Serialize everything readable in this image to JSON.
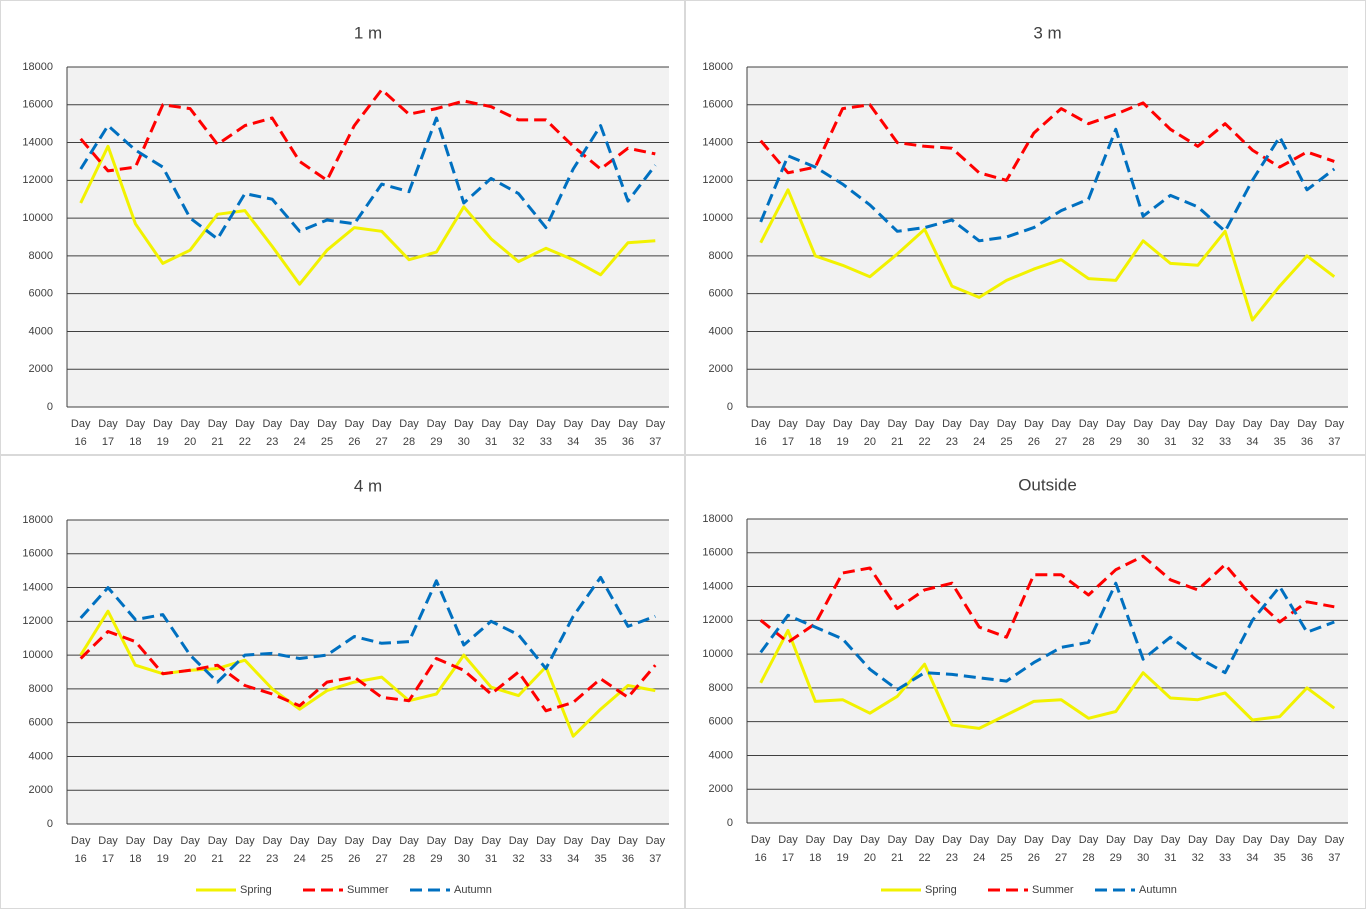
{
  "chart_data": [
    {
      "type": "line",
      "title": "1 m",
      "categories": [
        "Day 16",
        "Day 17",
        "Day 18",
        "Day 19",
        "Day 20",
        "Day 21",
        "Day 22",
        "Day 23",
        "Day 24",
        "Day 25",
        "Day 26",
        "Day 27",
        "Day 28",
        "Day 29",
        "Day 30",
        "Day 31",
        "Day 32",
        "Day 33",
        "Day 34",
        "Day 35",
        "Day 36",
        "Day 37"
      ],
      "series": [
        {
          "color": "#f2f200",
          "style": "solid",
          "values": [
            10800,
            13800,
            9700,
            7600,
            8300,
            10200,
            10400,
            8500,
            6500,
            8300,
            9500,
            9300,
            7800,
            8200,
            10600,
            8900,
            7700,
            8400,
            7800,
            7000,
            8700,
            8800
          ]
        },
        {
          "color": "#ff0000",
          "style": "dashed",
          "values": [
            14200,
            12500,
            12700,
            16000,
            15800,
            13900,
            14900,
            15300,
            13000,
            12000,
            14900,
            16800,
            15500,
            15800,
            16200,
            15900,
            15200,
            15200,
            13800,
            12600,
            13700,
            13400
          ]
        },
        {
          "color": "#0070c0",
          "style": "dashed",
          "values": [
            12600,
            14900,
            13600,
            12700,
            10000,
            8900,
            11300,
            11000,
            9300,
            9900,
            9700,
            11800,
            11400,
            15300,
            10800,
            12100,
            11300,
            9500,
            12600,
            14900,
            10900,
            12800
          ]
        }
      ],
      "ylim": [
        0,
        18000
      ],
      "yticks": [
        0,
        2000,
        4000,
        6000,
        8000,
        10000,
        12000,
        14000,
        16000,
        18000
      ],
      "grid": true
    },
    {
      "type": "line",
      "title": "3 m",
      "categories": [
        "Day 16",
        "Day 17",
        "Day 18",
        "Day 19",
        "Day 20",
        "Day 21",
        "Day 22",
        "Day 23",
        "Day 24",
        "Day 25",
        "Day 26",
        "Day 27",
        "Day 28",
        "Day 29",
        "Day 30",
        "Day 31",
        "Day 32",
        "Day 33",
        "Day 34",
        "Day 35",
        "Day 36",
        "Day 37"
      ],
      "series": [
        {
          "color": "#f2f200",
          "style": "solid",
          "values": [
            8700,
            11500,
            8000,
            7500,
            6900,
            8100,
            9400,
            6400,
            5800,
            6700,
            7300,
            7800,
            6800,
            6700,
            8800,
            7600,
            7500,
            9300,
            4600,
            6400,
            8000,
            6900
          ]
        },
        {
          "color": "#ff0000",
          "style": "dashed",
          "values": [
            14100,
            12400,
            12700,
            15800,
            16000,
            14000,
            13800,
            13700,
            12400,
            12000,
            14500,
            15800,
            15000,
            15500,
            16100,
            14700,
            13800,
            15000,
            13600,
            12700,
            13500,
            13000
          ]
        },
        {
          "color": "#0070c0",
          "style": "dashed",
          "values": [
            9800,
            13300,
            12700,
            11800,
            10700,
            9300,
            9500,
            9900,
            8800,
            9000,
            9500,
            10400,
            11000,
            14700,
            10100,
            11200,
            10600,
            9300,
            12000,
            14300,
            11500,
            12600
          ]
        }
      ],
      "ylim": [
        0,
        18000
      ],
      "yticks": [
        0,
        2000,
        4000,
        6000,
        8000,
        10000,
        12000,
        14000,
        16000,
        18000
      ],
      "grid": true
    },
    {
      "type": "line",
      "title": "4 m",
      "categories": [
        "Day 16",
        "Day 17",
        "Day 18",
        "Day 19",
        "Day 20",
        "Day 21",
        "Day 22",
        "Day 23",
        "Day 24",
        "Day 25",
        "Day 26",
        "Day 27",
        "Day 28",
        "Day 29",
        "Day 30",
        "Day 31",
        "Day 32",
        "Day 33",
        "Day 34",
        "Day 35",
        "Day 36",
        "Day 37"
      ],
      "series": [
        {
          "name": "Spring",
          "color": "#f2f200",
          "style": "solid",
          "values": [
            10000,
            12600,
            9400,
            8900,
            9100,
            9200,
            9700,
            8000,
            6800,
            7900,
            8400,
            8700,
            7300,
            7700,
            10000,
            8100,
            7600,
            9300,
            5200,
            6800,
            8200,
            7900
          ]
        },
        {
          "name": "Summer",
          "color": "#ff0000",
          "style": "dashed",
          "values": [
            9800,
            11400,
            10800,
            8900,
            9100,
            9400,
            8200,
            7700,
            7000,
            8400,
            8700,
            7500,
            7300,
            9800,
            9100,
            7700,
            9000,
            6700,
            7200,
            8600,
            7500,
            9400
          ]
        },
        {
          "name": "Autumn",
          "color": "#0070c0",
          "style": "dashed",
          "values": [
            12200,
            14000,
            12100,
            12400,
            10000,
            8400,
            10000,
            10100,
            9800,
            10000,
            11100,
            10700,
            10800,
            14400,
            10600,
            12000,
            11200,
            9200,
            12300,
            14600,
            11700,
            12300
          ]
        }
      ],
      "ylim": [
        0,
        18000
      ],
      "yticks": [
        0,
        2000,
        4000,
        6000,
        8000,
        10000,
        12000,
        14000,
        16000,
        18000
      ],
      "grid": true,
      "legend": "bottom"
    },
    {
      "type": "line",
      "title": "Outside",
      "categories": [
        "Day 16",
        "Day 17",
        "Day 18",
        "Day 19",
        "Day 20",
        "Day 21",
        "Day 22",
        "Day 23",
        "Day 24",
        "Day 25",
        "Day 26",
        "Day 27",
        "Day 28",
        "Day 29",
        "Day 30",
        "Day 31",
        "Day 32",
        "Day 33",
        "Day 34",
        "Day 35",
        "Day 36",
        "Day 37"
      ],
      "series": [
        {
          "name": "Spring",
          "color": "#f2f200",
          "style": "solid",
          "values": [
            8300,
            11400,
            7200,
            7300,
            6500,
            7500,
            9400,
            5800,
            5600,
            6400,
            7200,
            7300,
            6200,
            6600,
            8900,
            7400,
            7300,
            7700,
            6100,
            6300,
            8000,
            6800
          ]
        },
        {
          "name": "Summer",
          "color": "#ff0000",
          "style": "dashed",
          "values": [
            12000,
            10700,
            11800,
            14800,
            15100,
            12700,
            13800,
            14200,
            11600,
            11000,
            14700,
            14700,
            13500,
            15000,
            15800,
            14400,
            13800,
            15300,
            13400,
            11900,
            13100,
            12800
          ]
        },
        {
          "name": "Autumn",
          "color": "#0070c0",
          "style": "dashed",
          "values": [
            10100,
            12300,
            11600,
            10900,
            9100,
            7900,
            8900,
            8800,
            8600,
            8400,
            9500,
            10400,
            10700,
            14200,
            9700,
            11000,
            9800,
            8900,
            12000,
            14000,
            11300,
            11900
          ]
        }
      ],
      "ylim": [
        0,
        18000
      ],
      "yticks": [
        0,
        2000,
        4000,
        6000,
        8000,
        10000,
        12000,
        14000,
        16000,
        18000
      ],
      "grid": true,
      "legend": "bottom"
    }
  ]
}
